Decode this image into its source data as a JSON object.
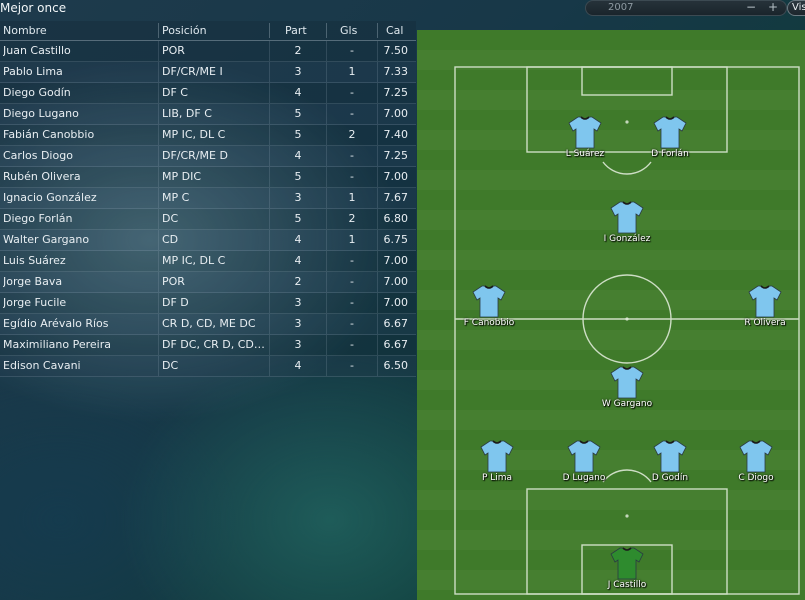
{
  "title": "Mejor once",
  "year_field": {
    "value": "2007",
    "minus": "−",
    "plus": "+"
  },
  "view_button": "Vis",
  "table": {
    "headers": {
      "name": "Nombre",
      "pos": "Posición",
      "part": "Part",
      "gls": "Gls",
      "cal": "Cal"
    },
    "rows": [
      {
        "name": "Juan Castillo",
        "pos": "POR",
        "part": "2",
        "gls": "-",
        "cal": "7.50"
      },
      {
        "name": "Pablo Lima",
        "pos": "DF/CR/ME I",
        "part": "3",
        "gls": "1",
        "cal": "7.33"
      },
      {
        "name": "Diego Godín",
        "pos": "DF C",
        "part": "4",
        "gls": "-",
        "cal": "7.25"
      },
      {
        "name": "Diego Lugano",
        "pos": "LIB, DF C",
        "part": "5",
        "gls": "-",
        "cal": "7.00"
      },
      {
        "name": "Fabián Canobbio",
        "pos": "MP IC, DL C",
        "part": "5",
        "gls": "2",
        "cal": "7.40"
      },
      {
        "name": "Carlos Diogo",
        "pos": "DF/CR/ME D",
        "part": "4",
        "gls": "-",
        "cal": "7.25"
      },
      {
        "name": "Rubén Olivera",
        "pos": "MP DIC",
        "part": "5",
        "gls": "-",
        "cal": "7.00"
      },
      {
        "name": "Ignacio González",
        "pos": "MP C",
        "part": "3",
        "gls": "1",
        "cal": "7.67"
      },
      {
        "name": "Diego Forlán",
        "pos": "DC",
        "part": "5",
        "gls": "2",
        "cal": "6.80"
      },
      {
        "name": "Walter Gargano",
        "pos": "CD",
        "part": "4",
        "gls": "1",
        "cal": "6.75"
      },
      {
        "name": "Luis Suárez",
        "pos": "MP IC, DL C",
        "part": "4",
        "gls": "-",
        "cal": "7.00"
      },
      {
        "name": "Jorge Bava",
        "pos": "POR",
        "part": "2",
        "gls": "-",
        "cal": "7.00"
      },
      {
        "name": "Jorge Fucile",
        "pos": "DF D",
        "part": "3",
        "gls": "-",
        "cal": "7.00"
      },
      {
        "name": "Egídio Arévalo Ríos",
        "pos": "CR D, CD, ME DC",
        "part": "3",
        "gls": "-",
        "cal": "6.67"
      },
      {
        "name": "Maximiliano Pereira",
        "pos": "DF DC, CR D, CD, M...",
        "part": "3",
        "gls": "-",
        "cal": "6.67"
      },
      {
        "name": "Edison Cavani",
        "pos": "DC",
        "part": "4",
        "gls": "-",
        "cal": "6.50"
      }
    ]
  },
  "formation": {
    "shirt_color": "#7fc6ee",
    "keeper_shirt_color": "#2e8b2e",
    "players": [
      {
        "label": "L Suárez",
        "icon": "outfield-shirt-icon"
      },
      {
        "label": "D Forlán",
        "icon": "outfield-shirt-icon"
      },
      {
        "label": "I González",
        "icon": "outfield-shirt-icon"
      },
      {
        "label": "F Canobbio",
        "icon": "outfield-shirt-icon"
      },
      {
        "label": "R Olivera",
        "icon": "outfield-shirt-icon"
      },
      {
        "label": "W Gargano",
        "icon": "outfield-shirt-icon"
      },
      {
        "label": "P Lima",
        "icon": "outfield-shirt-icon"
      },
      {
        "label": "D Lugano",
        "icon": "outfield-shirt-icon"
      },
      {
        "label": "D Godín",
        "icon": "outfield-shirt-icon"
      },
      {
        "label": "C Diogo",
        "icon": "outfield-shirt-icon"
      },
      {
        "label": "J Castillo",
        "icon": "keeper-shirt-icon"
      }
    ]
  }
}
